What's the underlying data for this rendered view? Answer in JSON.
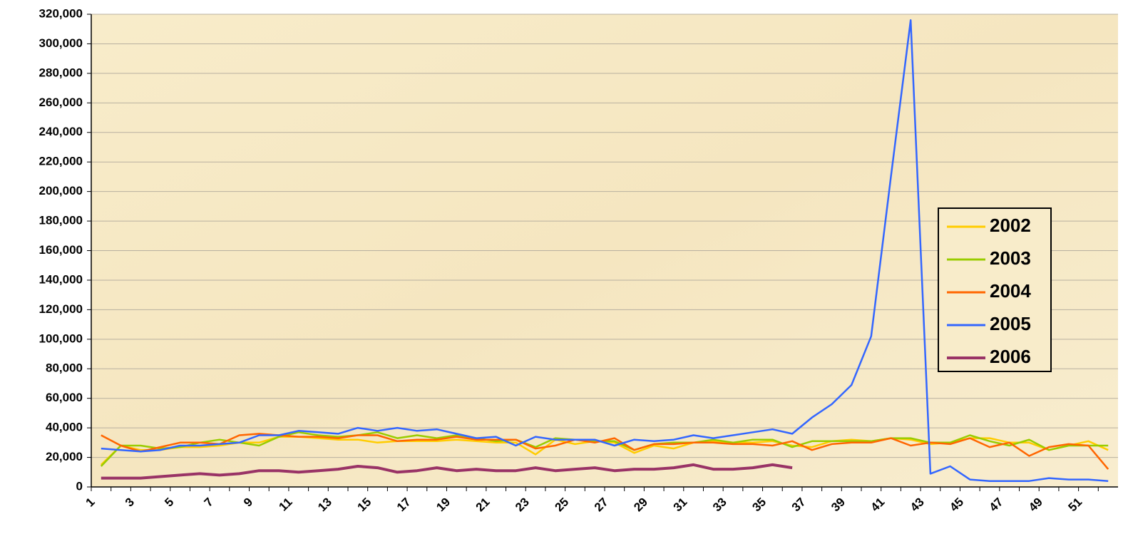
{
  "chart_data": {
    "type": "line",
    "categories": [
      "1",
      null,
      "3",
      null,
      "5",
      null,
      "7",
      null,
      "9",
      null,
      "11",
      null,
      "13",
      null,
      "15",
      null,
      "17",
      null,
      "19",
      null,
      "21",
      null,
      "23",
      null,
      "25",
      null,
      "27",
      null,
      "29",
      null,
      "31",
      null,
      "33",
      null,
      "35",
      null,
      "37",
      null,
      "39",
      null,
      "41",
      null,
      "43",
      null,
      "45",
      null,
      "47",
      null,
      "49",
      null,
      "51",
      null
    ],
    "series": [
      {
        "name": "2002",
        "color": "#ffcc00",
        "values": [
          15000,
          28000,
          25000,
          25000,
          27000,
          27000,
          28000,
          30000,
          30000,
          34000,
          34000,
          33000,
          32000,
          32000,
          30000,
          31000,
          31000,
          31000,
          32000,
          31000,
          30000,
          30000,
          22000,
          32000,
          29000,
          31000,
          30000,
          23000,
          28000,
          26000,
          30000,
          31000,
          30000,
          30000,
          31000,
          28000,
          27000,
          31000,
          32000,
          31000,
          33000,
          32000,
          29000,
          30000,
          33000,
          33000,
          30000,
          30000,
          25000,
          28000,
          31000,
          25000
        ]
      },
      {
        "name": "2003",
        "color": "#99cc00",
        "values": [
          14000,
          28000,
          28000,
          26000,
          27000,
          30000,
          32000,
          30000,
          28000,
          34000,
          37000,
          35000,
          34000,
          35000,
          37000,
          33000,
          35000,
          33000,
          35000,
          33000,
          31000,
          32000,
          27000,
          33000,
          32000,
          31000,
          31000,
          25000,
          29000,
          30000,
          30000,
          32000,
          30000,
          32000,
          32000,
          27000,
          31000,
          31000,
          31000,
          31000,
          33000,
          33000,
          30000,
          30000,
          35000,
          31000,
          28000,
          32000,
          25000,
          28000,
          28000,
          28000
        ]
      },
      {
        "name": "2004",
        "color": "#ff6600",
        "values": [
          35000,
          28000,
          24000,
          27000,
          30000,
          30000,
          29000,
          35000,
          36000,
          35000,
          34000,
          34000,
          33000,
          35000,
          35000,
          31000,
          32000,
          32000,
          34000,
          32000,
          32000,
          32000,
          26000,
          28000,
          32000,
          30000,
          33000,
          25000,
          29000,
          29000,
          30000,
          30000,
          29000,
          29000,
          28000,
          31000,
          25000,
          29000,
          30000,
          30000,
          33000,
          28000,
          30000,
          29000,
          33000,
          27000,
          30000,
          21000,
          27000,
          29000,
          28000,
          12000
        ]
      },
      {
        "name": "2005",
        "color": "#3366ff",
        "values": [
          26000,
          25000,
          24000,
          25000,
          28000,
          28000,
          29000,
          30000,
          35000,
          35000,
          38000,
          37000,
          36000,
          40000,
          38000,
          40000,
          38000,
          39000,
          36000,
          33000,
          34000,
          28000,
          34000,
          32000,
          32000,
          32000,
          28000,
          32000,
          31000,
          32000,
          35000,
          33000,
          35000,
          37000,
          39000,
          36000,
          47000,
          56000,
          69000,
          102000,
          210000,
          316000,
          9000,
          14000,
          5000,
          4000,
          4000,
          4000,
          6000,
          5000,
          5000,
          4000
        ]
      },
      {
        "name": "2006",
        "color": "#993366",
        "values": [
          6000,
          6000,
          6000,
          7000,
          8000,
          9000,
          8000,
          9000,
          11000,
          11000,
          10000,
          11000,
          12000,
          14000,
          13000,
          10000,
          11000,
          13000,
          11000,
          12000,
          11000,
          11000,
          13000,
          11000,
          12000,
          13000,
          11000,
          12000,
          12000,
          13000,
          15000,
          12000,
          12000,
          13000,
          15000,
          13000,
          null,
          null,
          null,
          null,
          null,
          null,
          null,
          null,
          null,
          null,
          null,
          null,
          null,
          null,
          null,
          null
        ]
      }
    ],
    "ylim": [
      0,
      320000
    ],
    "yticks": [
      0,
      {
        "value": 20000,
        "label": "20,000"
      },
      {
        "value": 40000,
        "label": "40,000"
      },
      {
        "value": 60000,
        "label": "60,000"
      },
      {
        "value": 80000,
        "label": "80,000"
      },
      {
        "value": 100000,
        "label": "100,000"
      },
      {
        "value": 120000,
        "label": "120,000"
      },
      {
        "value": 140000,
        "label": "140,000"
      },
      {
        "value": 160000,
        "label": "160,000"
      },
      {
        "value": 180000,
        "label": "180,000"
      },
      {
        "value": 200000,
        "label": "200,000"
      },
      {
        "value": 220000,
        "label": "220,000"
      },
      {
        "value": 240000,
        "label": "240,000"
      },
      {
        "value": 260000,
        "label": "260,000"
      },
      {
        "value": 280000,
        "label": "280,000"
      },
      {
        "value": 300000,
        "label": "300,000"
      },
      {
        "value": 320000,
        "label": "320,000"
      }
    ],
    "grid": true,
    "legend": "right"
  }
}
